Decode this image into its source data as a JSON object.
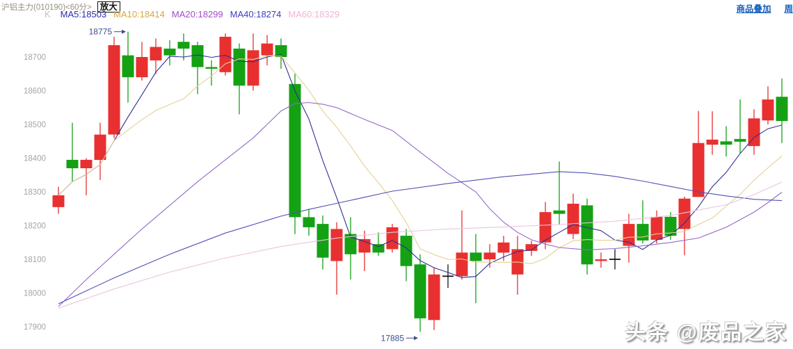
{
  "header": {
    "title": "沪铝主力(010190)<60分>",
    "zoom_button": "放大",
    "overlay_link": "商品叠加",
    "period_link": "周"
  },
  "legend": {
    "k_label": "K",
    "items": [
      {
        "id": "ma5",
        "label": "MA5:18503",
        "color": "#2b2bb2"
      },
      {
        "id": "ma10",
        "label": "MA10:18414",
        "color": "#d9a63c"
      },
      {
        "id": "ma20",
        "label": "MA20:18299",
        "color": "#a44bd0"
      },
      {
        "id": "ma40",
        "label": "MA40:18274",
        "color": "#3b3bc0"
      },
      {
        "id": "ma60",
        "label": "MA60:18329",
        "color": "#f0b4d8"
      }
    ]
  },
  "watermark": "头条 @废品之家",
  "chart_data": {
    "type": "candlestick",
    "symbol": "沪铝主力",
    "code": "010190",
    "interval": "60分",
    "y_ticks": [
      "18700",
      "18600",
      "18500",
      "18400",
      "18300",
      "18200",
      "18100",
      "18000",
      "17900"
    ],
    "ylim": [
      17850,
      18800
    ],
    "grid": false,
    "colors": {
      "up": "#e83030",
      "down": "#14a114",
      "flat": "#141414",
      "annotation": "#3c4f8e",
      "tick_label": "#a5a5a5"
    },
    "annotations": [
      {
        "text": "18775",
        "index": 5,
        "price": 18775,
        "side": "high"
      },
      {
        "text": "17885",
        "index": 26,
        "price": 17885,
        "side": "low"
      }
    ],
    "candles": [
      [
        18255,
        18315,
        18235,
        18290,
        "u"
      ],
      [
        18395,
        18505,
        18330,
        18370,
        "d"
      ],
      [
        18370,
        18400,
        18290,
        18395,
        "u"
      ],
      [
        18395,
        18505,
        18335,
        18470,
        "u"
      ],
      [
        18470,
        18760,
        18460,
        18735,
        "u"
      ],
      [
        18705,
        18775,
        18565,
        18640,
        "d"
      ],
      [
        18640,
        18745,
        18630,
        18700,
        "u"
      ],
      [
        18690,
        18755,
        18650,
        18730,
        "u"
      ],
      [
        18725,
        18750,
        18675,
        18705,
        "d"
      ],
      [
        18745,
        18770,
        18690,
        18725,
        "d"
      ],
      [
        18735,
        18745,
        18590,
        18670,
        "d"
      ],
      [
        18670,
        18690,
        18615,
        18665,
        "d"
      ],
      [
        18655,
        18770,
        18645,
        18760,
        "u"
      ],
      [
        18725,
        18740,
        18530,
        18615,
        "d"
      ],
      [
        18615,
        18770,
        18600,
        18720,
        "u"
      ],
      [
        18705,
        18765,
        18675,
        18740,
        "u"
      ],
      [
        18735,
        18755,
        18665,
        18700,
        "d"
      ],
      [
        18620,
        18650,
        18175,
        18225,
        "d"
      ],
      [
        18225,
        18250,
        18170,
        18195,
        "d"
      ],
      [
        18205,
        18230,
        18070,
        18105,
        "d"
      ],
      [
        18095,
        18210,
        17995,
        18190,
        "u"
      ],
      [
        18175,
        18225,
        18040,
        18115,
        "d"
      ],
      [
        18120,
        18185,
        18065,
        18160,
        "u"
      ],
      [
        18145,
        18180,
        18110,
        18120,
        "d"
      ],
      [
        18130,
        18205,
        18120,
        18195,
        "u"
      ],
      [
        18170,
        18190,
        18035,
        18080,
        "d"
      ],
      [
        18085,
        18115,
        17885,
        17925,
        "d"
      ],
      [
        17920,
        18075,
        17890,
        18055,
        "u"
      ],
      [
        18050,
        18085,
        18015,
        18050,
        "f"
      ],
      [
        18050,
        18245,
        18040,
        18120,
        "u"
      ],
      [
        18120,
        18175,
        17970,
        18095,
        "d"
      ],
      [
        18100,
        18145,
        18075,
        18120,
        "u"
      ],
      [
        18120,
        18170,
        18095,
        18150,
        "u"
      ],
      [
        18055,
        18170,
        17995,
        18130,
        "u"
      ],
      [
        18125,
        18155,
        18110,
        18145,
        "u"
      ],
      [
        18150,
        18270,
        18130,
        18240,
        "u"
      ],
      [
        18245,
        18390,
        18203,
        18235,
        "d"
      ],
      [
        18175,
        18295,
        18160,
        18265,
        "u"
      ],
      [
        18260,
        18280,
        18055,
        18085,
        "d"
      ],
      [
        18095,
        18120,
        18075,
        18100,
        "u"
      ],
      [
        18100,
        18130,
        18070,
        18100,
        "f"
      ],
      [
        18140,
        18235,
        18090,
        18205,
        "u"
      ],
      [
        18205,
        18275,
        18147,
        18156,
        "d"
      ],
      [
        18158,
        18245,
        18147,
        18226,
        "u"
      ],
      [
        18226,
        18240,
        18158,
        18170,
        "d"
      ],
      [
        18190,
        18286,
        18112,
        18280,
        "u"
      ],
      [
        18285,
        18540,
        18285,
        18445,
        "u"
      ],
      [
        18440,
        18539,
        18410,
        18455,
        "u"
      ],
      [
        18450,
        18495,
        18405,
        18440,
        "d"
      ],
      [
        18457,
        18574,
        18415,
        18449,
        "d"
      ],
      [
        18436,
        18545,
        18410,
        18518,
        "u"
      ],
      [
        18512,
        18613,
        18500,
        18574,
        "u"
      ],
      [
        18582,
        18636,
        18445,
        18510,
        "d"
      ]
    ],
    "ma_computed": {
      "ma5_period": 5,
      "ma5_color": "#2f2f92",
      "ma10_period": 10,
      "ma10_color": "#e6d095"
    },
    "ma_series": [
      {
        "name": "MA20",
        "line_color": "#9468c8",
        "points": [
          [
            0,
            17960
          ],
          [
            2,
            18040
          ],
          [
            4,
            18115
          ],
          [
            6,
            18190
          ],
          [
            8,
            18260
          ],
          [
            10,
            18330
          ],
          [
            12,
            18395
          ],
          [
            14,
            18460
          ],
          [
            16,
            18540
          ],
          [
            17,
            18562
          ],
          [
            18,
            18565
          ],
          [
            19,
            18560
          ],
          [
            20,
            18550
          ],
          [
            22,
            18515
          ],
          [
            24,
            18482
          ],
          [
            26,
            18418
          ],
          [
            28,
            18355
          ],
          [
            30,
            18300
          ],
          [
            31,
            18250
          ],
          [
            32,
            18210
          ],
          [
            33,
            18180
          ],
          [
            34,
            18158
          ],
          [
            35,
            18145
          ],
          [
            36,
            18135
          ],
          [
            38,
            18128
          ],
          [
            40,
            18132
          ],
          [
            42,
            18140
          ],
          [
            44,
            18150
          ],
          [
            46,
            18163
          ],
          [
            48,
            18195
          ],
          [
            50,
            18240
          ],
          [
            51,
            18268
          ],
          [
            52,
            18299
          ]
        ]
      },
      {
        "name": "MA40",
        "line_color": "#5050b4",
        "points": [
          [
            0,
            17968
          ],
          [
            4,
            18045
          ],
          [
            8,
            18115
          ],
          [
            12,
            18178
          ],
          [
            16,
            18228
          ],
          [
            18,
            18248
          ],
          [
            20,
            18266
          ],
          [
            24,
            18302
          ],
          [
            28,
            18325
          ],
          [
            32,
            18345
          ],
          [
            36,
            18360
          ],
          [
            38,
            18356
          ],
          [
            40,
            18346
          ],
          [
            42,
            18332
          ],
          [
            44,
            18316
          ],
          [
            46,
            18300
          ],
          [
            48,
            18288
          ],
          [
            50,
            18278
          ],
          [
            52,
            18274
          ]
        ]
      },
      {
        "name": "MA60",
        "line_color": "#eac4e0",
        "points": [
          [
            0,
            17955
          ],
          [
            4,
            18012
          ],
          [
            8,
            18062
          ],
          [
            12,
            18104
          ],
          [
            16,
            18138
          ],
          [
            20,
            18163
          ],
          [
            24,
            18180
          ],
          [
            28,
            18190
          ],
          [
            32,
            18196
          ],
          [
            36,
            18203
          ],
          [
            40,
            18213
          ],
          [
            44,
            18230
          ],
          [
            48,
            18262
          ],
          [
            50,
            18292
          ],
          [
            52,
            18329
          ]
        ]
      }
    ]
  }
}
